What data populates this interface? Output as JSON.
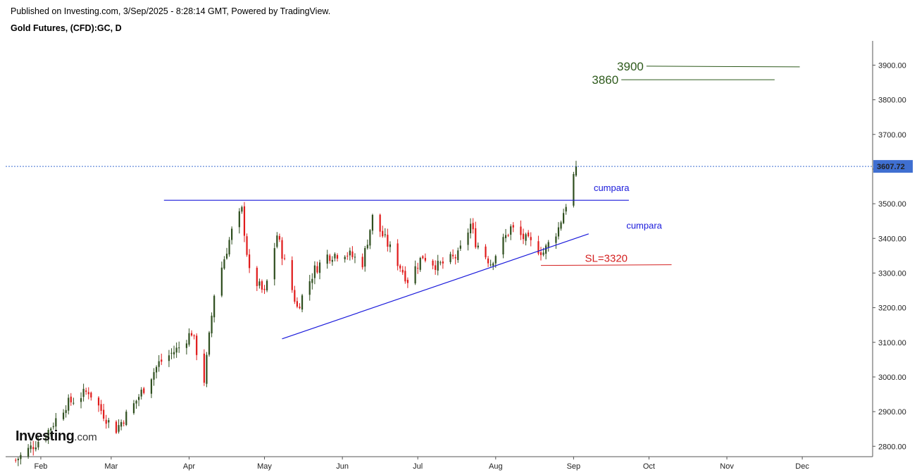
{
  "header": {
    "published": "Published on Investing.com, 3/Sep/2025 - 8:28:14 GMT, Powered by TradingView.",
    "instrument": "Gold Futures, (CFD):GC, D"
  },
  "logo": {
    "brand": "Investing",
    "domain": ".com"
  },
  "chart_data": {
    "type": "candlestick",
    "title": "Gold Futures, (CFD):GC, D",
    "xlabel": "",
    "ylabel": "",
    "ylim": [
      2770,
      3970
    ],
    "y_ticks": [
      "2800.00",
      "2900.00",
      "3000.00",
      "3100.00",
      "3200.00",
      "3300.00",
      "3400.00",
      "3500.00",
      "3600.00",
      "3700.00",
      "3800.00",
      "3900.00"
    ],
    "y_tick_values": [
      2800,
      2900,
      3000,
      3100,
      3200,
      3300,
      3400,
      3500,
      3600,
      3700,
      3800,
      3900
    ],
    "x_ticks": [
      {
        "label": "Feb",
        "date": "2025-02-01"
      },
      {
        "label": "Mar",
        "date": "2025-03-01"
      },
      {
        "label": "Apr",
        "date": "2025-04-01"
      },
      {
        "label": "May",
        "date": "2025-05-01"
      },
      {
        "label": "Jun",
        "date": "2025-06-01"
      },
      {
        "label": "Jul",
        "date": "2025-07-01"
      },
      {
        "label": "Aug",
        "date": "2025-08-01"
      },
      {
        "label": "Sep",
        "date": "2025-09-01"
      },
      {
        "label": "Oct",
        "date": "2025-10-01"
      },
      {
        "label": "Nov",
        "date": "2025-11-01"
      },
      {
        "label": "Dec",
        "date": "2025-12-01"
      }
    ],
    "xlim": [
      "2025-01-18",
      "2025-12-29"
    ],
    "last_price": 3607.72,
    "last_price_label": "3607.72",
    "colors": {
      "up": "#2f4f1f",
      "down": "#e01b1b",
      "last_price": "#3f6fd1",
      "trend": "#1a1adb",
      "target": "#2e5a1c",
      "stop": "#d42020"
    },
    "anchors": [
      [
        "2025-01-22",
        2760
      ],
      [
        "2025-01-27",
        2790
      ],
      [
        "2025-02-03",
        2835
      ],
      [
        "2025-02-11",
        2920
      ],
      [
        "2025-02-20",
        2960
      ],
      [
        "2025-02-28",
        2870
      ],
      [
        "2025-03-03",
        2850
      ],
      [
        "2025-03-10",
        2920
      ],
      [
        "2025-03-20",
        3040
      ],
      [
        "2025-03-28",
        3085
      ],
      [
        "2025-04-02",
        3130
      ],
      [
        "2025-04-07",
        2990
      ],
      [
        "2025-04-11",
        3240
      ],
      [
        "2025-04-18",
        3420
      ],
      [
        "2025-04-22",
        3480
      ],
      [
        "2025-04-25",
        3300
      ],
      [
        "2025-05-01",
        3240
      ],
      [
        "2025-05-06",
        3410
      ],
      [
        "2025-05-09",
        3330
      ],
      [
        "2025-05-14",
        3200
      ],
      [
        "2025-05-21",
        3310
      ],
      [
        "2025-05-26",
        3350
      ],
      [
        "2025-06-02",
        3360
      ],
      [
        "2025-06-09",
        3330
      ],
      [
        "2025-06-13",
        3460
      ],
      [
        "2025-06-20",
        3370
      ],
      [
        "2025-06-27",
        3280
      ],
      [
        "2025-07-03",
        3350
      ],
      [
        "2025-07-09",
        3320
      ],
      [
        "2025-07-17",
        3350
      ],
      [
        "2025-07-22",
        3440
      ],
      [
        "2025-07-24",
        3390
      ],
      [
        "2025-07-30",
        3330
      ],
      [
        "2025-08-07",
        3430
      ],
      [
        "2025-08-14",
        3390
      ],
      [
        "2025-08-20",
        3360
      ],
      [
        "2025-08-26",
        3430
      ],
      [
        "2025-08-29",
        3500
      ],
      [
        "2025-09-02",
        3607
      ]
    ],
    "annotations": [
      {
        "type": "hline",
        "label": "",
        "x0": "2025-03-22",
        "x1": "2025-09-23",
        "y0": 3510,
        "y1": 3510,
        "color": "#1a1adb"
      },
      {
        "type": "trendline",
        "label": "",
        "x0": "2025-05-08",
        "x1": "2025-09-07",
        "y0": 3110,
        "y1": 3413,
        "color": "#1a1adb"
      },
      {
        "type": "target",
        "label": "3900",
        "x0": "2025-09-30",
        "x1": "2025-11-30",
        "y0": 3897,
        "y1": 3895,
        "color": "#2e5a1c"
      },
      {
        "type": "target",
        "label": "3860",
        "x0": "2025-09-20",
        "x1": "2025-11-20",
        "y0": 3858,
        "y1": 3858,
        "color": "#2e5a1c"
      },
      {
        "type": "stop",
        "label": "SL=3320",
        "x0": "2025-08-19",
        "x1": "2025-10-10",
        "y0": 3322,
        "y1": 3324,
        "color": "#d42020"
      },
      {
        "type": "text",
        "label": "cumpara",
        "x": "2025-09-09",
        "y": 3537,
        "color": "#1a1adb"
      },
      {
        "type": "text",
        "label": "cumpara",
        "x": "2025-09-22",
        "y": 3428,
        "color": "#1a1adb"
      }
    ]
  }
}
